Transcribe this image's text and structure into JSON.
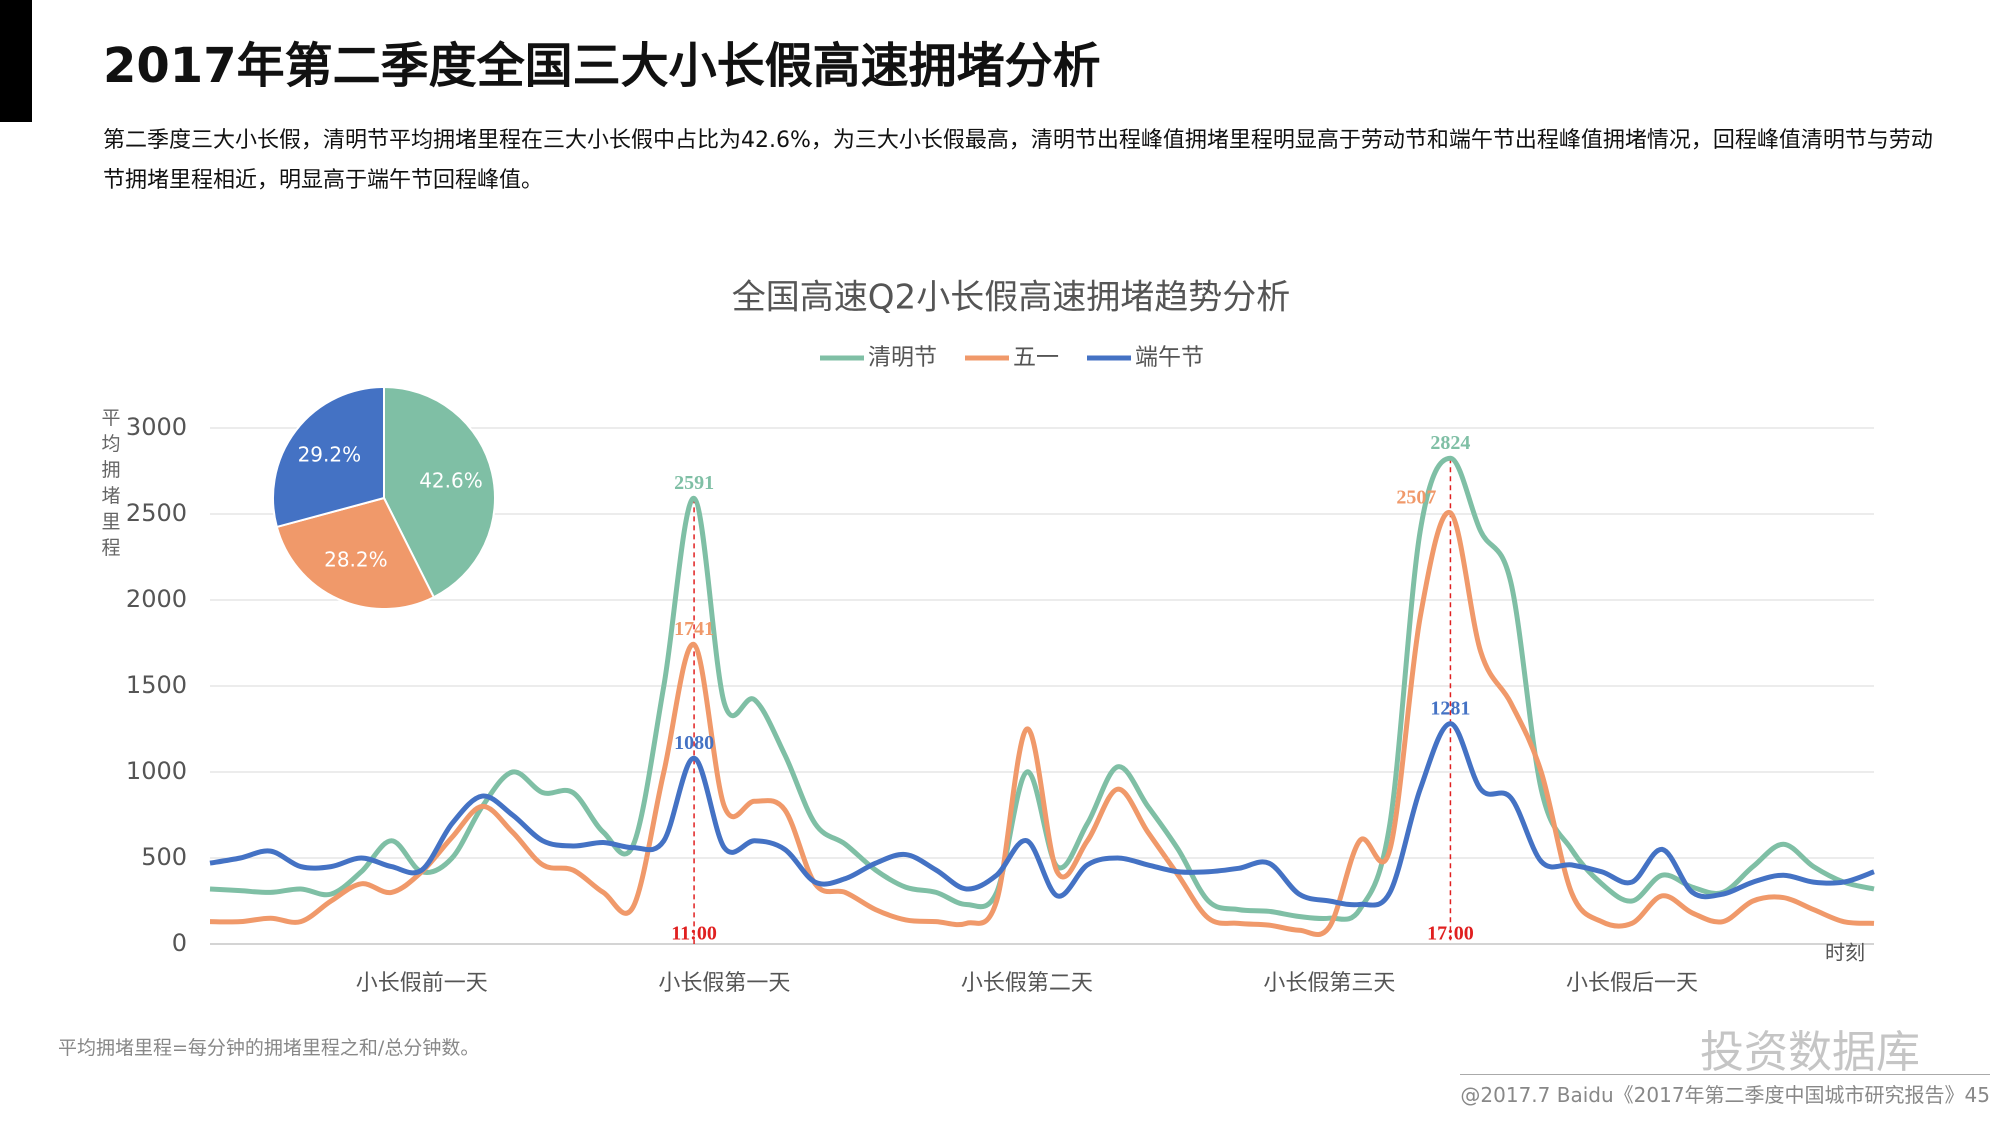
{
  "page": {
    "title": "2017年第二季度全国三大小长假高速拥堵分析",
    "description": "第二季度三大小长假，清明节平均拥堵里程在三大小长假中占比为42.6%，为三大小长假最高，清明节出程峰值拥堵里程明显高于劳动节和端午节出程峰值拥堵情况，回程峰值清明节与劳动节拥堵里程相近，明显高于端午节回程峰值。",
    "footnote": "平均拥堵里程=每分钟的拥堵里程之和/总分钟数。",
    "source": "@2017.7 Baidu《2017年第二季度中国城市研究报告》45",
    "watermark": "投资数据库"
  },
  "chart_data": [
    {
      "type": "line",
      "title": "全国高速Q2小长假高速拥堵趋势分析",
      "y_label": "平均拥堵里程",
      "x_label": "时刻",
      "categories": [
        null,
        null,
        null,
        null,
        null,
        null,
        null,
        "小长假前一天",
        null,
        null,
        null,
        null,
        null,
        null,
        null,
        null,
        null,
        "小长假第一天",
        null,
        null,
        null,
        null,
        null,
        null,
        null,
        null,
        null,
        "小长假第二天",
        null,
        null,
        null,
        null,
        null,
        null,
        null,
        null,
        null,
        "小长假第三天",
        null,
        null,
        null,
        null,
        null,
        null,
        null,
        null,
        null,
        "小长假后一天",
        null,
        null,
        null,
        null,
        null,
        null,
        null,
        null
      ],
      "ylim": [
        0,
        3000
      ],
      "yticks": [
        0,
        500,
        1000,
        1500,
        2000,
        2500,
        3000
      ],
      "grid": true,
      "legend": "top",
      "series": [
        {
          "name": "清明节",
          "color": "#7fbfa5",
          "values": [
            320,
            310,
            300,
            320,
            290,
            420,
            600,
            420,
            500,
            800,
            1000,
            880,
            880,
            650,
            580,
            1500,
            2591,
            1400,
            1420,
            1100,
            700,
            580,
            430,
            330,
            300,
            230,
            300,
            1000,
            450,
            700,
            1030,
            800,
            550,
            250,
            200,
            190,
            160,
            150,
            200,
            700,
            2400,
            2824,
            2400,
            2100,
            900,
            550,
            350,
            250,
            400,
            330,
            300,
            450,
            580,
            450,
            360,
            320
          ],
          "value_labels": [
            null,
            null,
            null,
            null,
            null,
            null,
            null,
            null,
            null,
            null,
            null,
            null,
            null,
            null,
            null,
            null,
            "2591",
            null,
            null,
            null,
            null,
            null,
            null,
            null,
            null,
            null,
            null,
            null,
            null,
            null,
            null,
            null,
            null,
            null,
            null,
            null,
            null,
            null,
            null,
            null,
            null,
            "2824",
            null,
            null,
            null,
            null,
            null,
            null,
            null,
            null,
            null,
            null,
            null,
            null,
            null,
            null
          ]
        },
        {
          "name": "五一",
          "color": "#f0996a",
          "values": [
            130,
            130,
            150,
            130,
            250,
            350,
            300,
            420,
            620,
            800,
            650,
            460,
            430,
            300,
            220,
            1000,
            1741,
            800,
            830,
            780,
            350,
            300,
            200,
            140,
            130,
            120,
            250,
            1250,
            420,
            600,
            900,
            650,
            400,
            150,
            120,
            110,
            80,
            100,
            600,
            550,
            1900,
            2507,
            1700,
            1400,
            1000,
            300,
            130,
            120,
            280,
            180,
            130,
            250,
            270,
            200,
            130,
            120
          ],
          "value_labels": [
            null,
            null,
            null,
            null,
            null,
            null,
            null,
            null,
            null,
            null,
            null,
            null,
            null,
            null,
            null,
            null,
            "1741",
            null,
            null,
            null,
            null,
            null,
            null,
            null,
            null,
            null,
            null,
            null,
            null,
            null,
            null,
            null,
            null,
            null,
            null,
            null,
            null,
            null,
            null,
            null,
            null,
            "2507",
            null,
            null,
            null,
            null,
            null,
            null,
            null,
            null,
            null,
            null,
            null,
            null,
            null,
            null
          ]
        },
        {
          "name": "端午节",
          "color": "#4472c4",
          "values": [
            470,
            500,
            540,
            450,
            450,
            500,
            450,
            430,
            700,
            860,
            750,
            600,
            570,
            590,
            560,
            600,
            1080,
            560,
            600,
            550,
            360,
            380,
            470,
            520,
            430,
            320,
            400,
            600,
            280,
            460,
            500,
            460,
            420,
            420,
            440,
            470,
            290,
            250,
            230,
            300,
            900,
            1281,
            900,
            850,
            480,
            460,
            420,
            360,
            550,
            300,
            290,
            360,
            400,
            360,
            360,
            420
          ],
          "value_labels": [
            null,
            null,
            null,
            null,
            null,
            null,
            null,
            null,
            null,
            null,
            null,
            null,
            null,
            null,
            null,
            null,
            "1080",
            null,
            null,
            null,
            null,
            null,
            null,
            null,
            null,
            null,
            null,
            null,
            null,
            null,
            null,
            null,
            null,
            null,
            null,
            null,
            null,
            null,
            null,
            null,
            null,
            "1281",
            null,
            null,
            null,
            null,
            null,
            null,
            null,
            null,
            null,
            null,
            null,
            null,
            null,
            null
          ]
        }
      ],
      "annotations": [
        {
          "text": "11:00",
          "at": 16,
          "color": "#e02020"
        },
        {
          "text": "17:00",
          "at": 41,
          "color": "#e02020"
        }
      ]
    },
    {
      "type": "pie",
      "values": [
        42.6,
        28.2,
        29.2
      ],
      "value_labels": [
        "42.6%",
        "28.2%",
        "29.2%"
      ],
      "colors": [
        "#7fbfa5",
        "#f0996a",
        "#4472c4"
      ]
    }
  ]
}
